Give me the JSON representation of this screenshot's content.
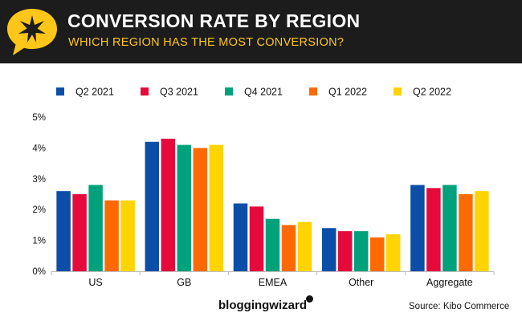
{
  "header": {
    "title": "CONVERSION RATE BY REGION",
    "subtitle": "WHICH REGION HAS THE MOST CONVERSION?",
    "logo_icon": "star-burst-speech-bubble-icon",
    "bg_color": "#1c1c1c",
    "accent_color": "#ffc61a"
  },
  "footer": {
    "brand": "bloggingwizard",
    "source": "Source: Kibo Commerce"
  },
  "chart_data": {
    "type": "bar",
    "title": "CONVERSION RATE BY REGION",
    "subtitle": "WHICH REGION HAS THE MOST CONVERSION?",
    "xlabel": "",
    "ylabel": "",
    "categories": [
      "US",
      "GB",
      "EMEA",
      "Other",
      "Aggregate"
    ],
    "series": [
      {
        "name": "Q2 2021",
        "color": "#0a4ea8",
        "values": [
          2.6,
          4.2,
          2.2,
          1.4,
          2.8
        ]
      },
      {
        "name": "Q3 2021",
        "color": "#e60a3c",
        "values": [
          2.5,
          4.3,
          2.1,
          1.3,
          2.7
        ]
      },
      {
        "name": "Q4 2021",
        "color": "#00a27b",
        "values": [
          2.8,
          4.1,
          1.7,
          1.3,
          2.8
        ]
      },
      {
        "name": "Q1 2022",
        "color": "#ff6a00",
        "values": [
          2.3,
          4.0,
          1.5,
          1.1,
          2.5
        ]
      },
      {
        "name": "Q2 2022",
        "color": "#ffd400",
        "values": [
          2.3,
          4.1,
          1.6,
          1.2,
          2.6
        ]
      }
    ],
    "ylim": [
      0,
      5
    ],
    "yticks": [
      0,
      1,
      2,
      3,
      4,
      5
    ],
    "ytick_format": "%",
    "grid": false,
    "legend_position": "top"
  }
}
